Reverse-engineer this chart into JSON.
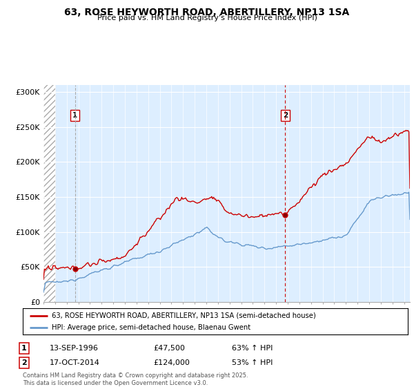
{
  "title": "63, ROSE HEYWORTH ROAD, ABERTILLERY, NP13 1SA",
  "subtitle": "Price paid vs. HM Land Registry's House Price Index (HPI)",
  "legend_line1": "63, ROSE HEYWORTH ROAD, ABERTILLERY, NP13 1SA (semi-detached house)",
  "legend_line2": "HPI: Average price, semi-detached house, Blaenau Gwent",
  "transaction1_label": "1",
  "transaction1_date": "13-SEP-1996",
  "transaction1_price": "£47,500",
  "transaction1_hpi": "63% ↑ HPI",
  "transaction2_label": "2",
  "transaction2_date": "17-OCT-2014",
  "transaction2_price": "£124,000",
  "transaction2_hpi": "53% ↑ HPI",
  "footnote": "Contains HM Land Registry data © Crown copyright and database right 2025.\nThis data is licensed under the Open Government Licence v3.0.",
  "hpi_color": "#6699cc",
  "price_color": "#cc0000",
  "transaction_color": "#cc0000",
  "plot_bg_color": "#ddeeff",
  "hatch_color": "#bbbbbb",
  "ylim": [
    0,
    310000
  ],
  "yticks": [
    0,
    50000,
    100000,
    150000,
    200000,
    250000,
    300000
  ],
  "ytick_labels": [
    "£0",
    "£50K",
    "£100K",
    "£150K",
    "£200K",
    "£250K",
    "£300K"
  ],
  "xstart_year": 1994,
  "xend_year": 2025,
  "transaction1_year": 1996.71,
  "transaction1_value": 47500,
  "transaction2_year": 2014.79,
  "transaction2_value": 124000
}
